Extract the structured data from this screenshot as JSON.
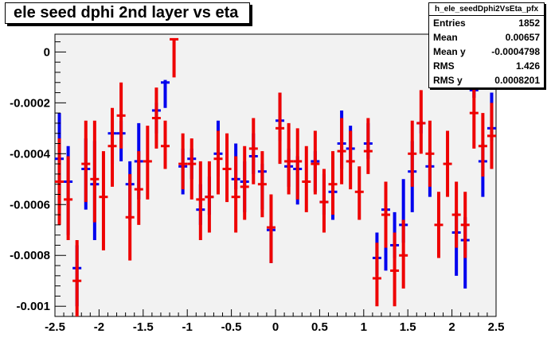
{
  "title": "ele seed dphi 2nd layer vs eta",
  "stats": {
    "name": "h_ele_seedDphi2VsEta_pfx",
    "rows": [
      {
        "label": "Entries",
        "value": "1852"
      },
      {
        "label": "Mean",
        "value": "0.00657"
      },
      {
        "label": "Mean y",
        "value": "-0.0004798"
      },
      {
        "label": "RMS",
        "value": "1.426"
      },
      {
        "label": "RMS y",
        "value": "0.0008201"
      }
    ]
  },
  "colors": {
    "frame_bg": "#f2f2f2",
    "series_blue": "#0000ee",
    "series_red": "#ee0000"
  },
  "chart_data": {
    "type": "scatter",
    "title": "ele seed dphi 2nd layer vs eta",
    "xlim": [
      -2.5,
      2.5
    ],
    "ylim": [
      -0.00104,
      7e-05
    ],
    "x_ticks": [
      -2.5,
      -2,
      -1.5,
      -1,
      -0.5,
      0,
      0.5,
      1,
      1.5,
      2,
      2.5
    ],
    "x_tick_labels": [
      "-2.5",
      "-2",
      "-1.5",
      "-1",
      "-0.5",
      "0",
      "0.5",
      "1",
      "1.5",
      "2",
      "2.5"
    ],
    "y_ticks": [
      0,
      -0.0002,
      -0.0004,
      -0.0006,
      -0.0008,
      -0.001
    ],
    "y_tick_labels": [
      "0",
      "-0.0002",
      "-0.0004",
      "-0.0006",
      "-0.0008",
      "-0.001"
    ],
    "grid": false,
    "series": [
      {
        "color": "blue",
        "points": [
          {
            "x": -2.45,
            "y": -0.00042,
            "lo": -0.00062,
            "hi": -0.00024
          },
          {
            "x": -2.35,
            "y": -0.00051,
            "lo": -0.00072,
            "hi": -0.00037
          },
          {
            "x": -2.25,
            "y": -0.00085,
            "lo": -0.001,
            "hi": -0.00076
          },
          {
            "x": -2.15,
            "y": -0.00046,
            "lo": -0.00062,
            "hi": -0.00034
          },
          {
            "x": -2.05,
            "y": -0.00052,
            "lo": -0.00074,
            "hi": -0.00035
          },
          {
            "x": -1.85,
            "y": -0.00032,
            "lo": -0.00044,
            "hi": -0.00027
          },
          {
            "x": -1.75,
            "y": -0.00032,
            "lo": -0.00043,
            "hi": -0.00027
          },
          {
            "x": -1.65,
            "y": -0.00052,
            "lo": -0.00066,
            "hi": -0.00043
          },
          {
            "x": -1.55,
            "y": -0.00043,
            "lo": -0.00058,
            "hi": -0.00028
          },
          {
            "x": -1.35,
            "y": -0.00023,
            "lo": -0.00032,
            "hi": -0.0002
          },
          {
            "x": -1.25,
            "y": -0.00012,
            "lo": -0.00022,
            "hi": -0.00011
          },
          {
            "x": -1.05,
            "y": -0.00045,
            "lo": -0.00056,
            "hi": -0.00038
          },
          {
            "x": -0.95,
            "y": -0.00042,
            "lo": -0.0005,
            "hi": -0.00038
          },
          {
            "x": -0.85,
            "y": -0.00062,
            "lo": -0.00068,
            "hi": -0.00052
          },
          {
            "x": -0.75,
            "y": -0.00057,
            "lo": -0.00064,
            "hi": -0.00049
          },
          {
            "x": -0.65,
            "y": -0.0004,
            "lo": -0.00049,
            "hi": -0.00027
          },
          {
            "x": -0.45,
            "y": -0.0005,
            "lo": -0.00054,
            "hi": -0.00036
          },
          {
            "x": -0.35,
            "y": -0.00051,
            "lo": -0.00063,
            "hi": -0.00043
          },
          {
            "x": -0.25,
            "y": -0.00041,
            "lo": -0.00048,
            "hi": -0.00032
          },
          {
            "x": -0.15,
            "y": -0.00047,
            "lo": -0.00062,
            "hi": -0.00044
          },
          {
            "x": -0.05,
            "y": -0.0007,
            "lo": -0.00083,
            "hi": -0.00067
          },
          {
            "x": 0.05,
            "y": -0.00027,
            "lo": -0.00035,
            "hi": -0.00016
          },
          {
            "x": 0.15,
            "y": -0.00045,
            "lo": -0.00053,
            "hi": -0.00038
          },
          {
            "x": 0.25,
            "y": -0.00046,
            "lo": -0.0006,
            "hi": -0.00041
          },
          {
            "x": 0.45,
            "y": -0.00043,
            "lo": -0.00055,
            "hi": -0.00039
          },
          {
            "x": 0.55,
            "y": -0.00059,
            "lo": -0.00064,
            "hi": -0.00048
          },
          {
            "x": 0.65,
            "y": -0.00055,
            "lo": -0.00066,
            "hi": -0.00041
          },
          {
            "x": 0.75,
            "y": -0.00036,
            "lo": -0.00046,
            "hi": -0.00023
          },
          {
            "x": 0.85,
            "y": -0.00038,
            "lo": -0.00044,
            "hi": -0.00029
          },
          {
            "x": 1.05,
            "y": -0.00036,
            "lo": -0.00042,
            "hi": -0.00028
          },
          {
            "x": 1.15,
            "y": -0.00081,
            "lo": -0.00088,
            "hi": -0.00071
          },
          {
            "x": 1.25,
            "y": -0.00062,
            "lo": -0.00086,
            "hi": -0.00052
          },
          {
            "x": 1.35,
            "y": -0.00076,
            "lo": -0.00081,
            "hi": -0.00063
          },
          {
            "x": 1.45,
            "y": -0.00068,
            "lo": -0.00075,
            "hi": -0.0005
          },
          {
            "x": 1.55,
            "y": -0.00047,
            "lo": -0.00063,
            "hi": -0.00035
          },
          {
            "x": 1.65,
            "y": -0.00028,
            "lo": -0.00032,
            "hi": -0.00027
          },
          {
            "x": 1.75,
            "y": -0.00045,
            "lo": -0.00057,
            "hi": -0.00039
          },
          {
            "x": 2.05,
            "y": -0.00071,
            "lo": -0.00088,
            "hi": -0.00063
          },
          {
            "x": 2.15,
            "y": -0.00074,
            "lo": -0.00093,
            "hi": -0.00065
          },
          {
            "x": 2.25,
            "y": -0.00015,
            "lo": -0.00018,
            "hi": -0.00012
          },
          {
            "x": 2.35,
            "y": -0.00043,
            "lo": -0.00057,
            "hi": -0.00036
          },
          {
            "x": 2.45,
            "y": -0.0003,
            "lo": -0.00035,
            "hi": -0.00016
          }
        ]
      },
      {
        "color": "red",
        "points": [
          {
            "x": -2.45,
            "y": -0.00051,
            "lo": -0.00068,
            "hi": -0.00034
          },
          {
            "x": -2.35,
            "y": -0.00058,
            "lo": -0.00074,
            "hi": -0.00041
          },
          {
            "x": -2.25,
            "y": -0.0009,
            "lo": -0.00104,
            "hi": -0.00074
          },
          {
            "x": -2.15,
            "y": -0.00044,
            "lo": -0.00059,
            "hi": -0.00027
          },
          {
            "x": -2.05,
            "y": -0.0005,
            "lo": -0.00067,
            "hi": -0.00027
          },
          {
            "x": -1.95,
            "y": -0.00057,
            "lo": -0.00078,
            "hi": -0.00039
          },
          {
            "x": -1.85,
            "y": -0.00037,
            "lo": -0.00053,
            "hi": -0.00022
          },
          {
            "x": -1.75,
            "y": -0.00025,
            "lo": -0.00038,
            "hi": -0.00012
          },
          {
            "x": -1.65,
            "y": -0.00065,
            "lo": -0.00082,
            "hi": -0.00048
          },
          {
            "x": -1.55,
            "y": -0.00054,
            "lo": -0.00068,
            "hi": -0.00039
          },
          {
            "x": -1.45,
            "y": -0.00043,
            "lo": -0.00058,
            "hi": -0.00029
          },
          {
            "x": -1.35,
            "y": -0.00026,
            "lo": -0.00038,
            "hi": -0.00014
          },
          {
            "x": -1.25,
            "y": -0.00037,
            "lo": -0.00046,
            "hi": -0.00027
          },
          {
            "x": -1.15,
            "y": 5e-05,
            "lo": -0.0001,
            "hi": 5e-05
          },
          {
            "x": -1.05,
            "y": -0.00044,
            "lo": -0.00054,
            "hi": -0.00032
          },
          {
            "x": -0.95,
            "y": -0.00044,
            "lo": -0.00058,
            "hi": -0.00034
          },
          {
            "x": -0.85,
            "y": -0.00058,
            "lo": -0.00074,
            "hi": -0.00043
          },
          {
            "x": -0.75,
            "y": -0.00057,
            "lo": -0.00071,
            "hi": -0.00043
          },
          {
            "x": -0.65,
            "y": -0.00042,
            "lo": -0.00056,
            "hi": -0.00031
          },
          {
            "x": -0.55,
            "y": -0.00046,
            "lo": -0.00059,
            "hi": -0.00032
          },
          {
            "x": -0.45,
            "y": -0.00057,
            "lo": -0.00071,
            "hi": -0.00041
          },
          {
            "x": -0.35,
            "y": -0.00053,
            "lo": -0.00066,
            "hi": -0.00037
          },
          {
            "x": -0.25,
            "y": -0.00038,
            "lo": -0.00052,
            "hi": -0.00026
          },
          {
            "x": -0.15,
            "y": -0.00052,
            "lo": -0.00065,
            "hi": -0.00039
          },
          {
            "x": -0.05,
            "y": -0.00069,
            "lo": -0.00083,
            "hi": -0.00056
          },
          {
            "x": 0.05,
            "y": -0.0003,
            "lo": -0.00044,
            "hi": -0.00016
          },
          {
            "x": 0.15,
            "y": -0.00043,
            "lo": -0.00056,
            "hi": -0.00028
          },
          {
            "x": 0.25,
            "y": -0.00043,
            "lo": -0.00058,
            "hi": -0.0003
          },
          {
            "x": 0.35,
            "y": -0.00051,
            "lo": -0.00063,
            "hi": -0.00037
          },
          {
            "x": 0.45,
            "y": -0.00044,
            "lo": -0.00056,
            "hi": -0.00031
          },
          {
            "x": 0.55,
            "y": -0.00059,
            "lo": -0.00071,
            "hi": -0.00046
          },
          {
            "x": 0.65,
            "y": -0.00052,
            "lo": -0.00064,
            "hi": -0.00039
          },
          {
            "x": 0.75,
            "y": -0.00039,
            "lo": -0.00052,
            "hi": -0.00026
          },
          {
            "x": 0.85,
            "y": -0.00043,
            "lo": -0.00054,
            "hi": -0.00031
          },
          {
            "x": 0.95,
            "y": -0.00055,
            "lo": -0.00066,
            "hi": -0.00045
          },
          {
            "x": 1.05,
            "y": -0.00039,
            "lo": -0.00048,
            "hi": -0.00026
          },
          {
            "x": 1.15,
            "y": -0.00089,
            "lo": -0.001,
            "hi": -0.00075
          },
          {
            "x": 1.25,
            "y": -0.00064,
            "lo": -0.00077,
            "hi": -0.00051
          },
          {
            "x": 1.35,
            "y": -0.00086,
            "lo": -0.001,
            "hi": -0.00071
          },
          {
            "x": 1.45,
            "y": -0.0008,
            "lo": -0.00093,
            "hi": -0.00066
          },
          {
            "x": 1.55,
            "y": -0.0004,
            "lo": -0.00053,
            "hi": -0.00027
          },
          {
            "x": 1.65,
            "y": -0.00028,
            "lo": -0.0004,
            "hi": -0.00015
          },
          {
            "x": 1.75,
            "y": -0.0004,
            "lo": -0.00053,
            "hi": -0.00027
          },
          {
            "x": 1.85,
            "y": -0.00068,
            "lo": -0.00081,
            "hi": -0.00055
          },
          {
            "x": 1.95,
            "y": -0.00044,
            "lo": -0.00057,
            "hi": -0.00031
          },
          {
            "x": 2.05,
            "y": -0.00064,
            "lo": -0.00077,
            "hi": -0.00051
          },
          {
            "x": 2.15,
            "y": -0.00068,
            "lo": -0.00081,
            "hi": -0.00055
          },
          {
            "x": 2.25,
            "y": -0.00024,
            "lo": -0.00038,
            "hi": -9e-05
          },
          {
            "x": 2.35,
            "y": -0.00037,
            "lo": -0.00049,
            "hi": -0.00024
          },
          {
            "x": 2.45,
            "y": -0.00033,
            "lo": -0.00046,
            "hi": -0.0002
          }
        ]
      }
    ]
  }
}
